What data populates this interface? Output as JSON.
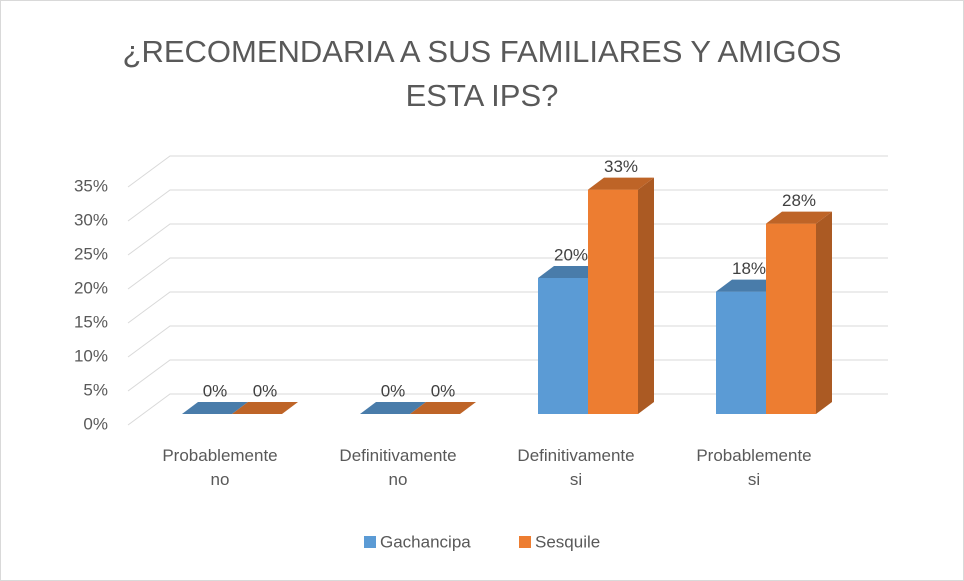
{
  "chart_data": {
    "type": "bar3d",
    "title": "¿RECOMENDARIA A SUS FAMILIARES Y AMIGOS ESTA IPS?",
    "categories": [
      "Probablemente no",
      "Definitivamente no",
      "Definitivamente si",
      "Probablemente si"
    ],
    "series": [
      {
        "name": "Gachancipa",
        "color": "#5b9bd5",
        "values": [
          0,
          0,
          20,
          18
        ],
        "value_labels": [
          "0%",
          "0%",
          "20%",
          "18%"
        ]
      },
      {
        "name": "Sesquile",
        "color": "#ed7d31",
        "values": [
          0,
          0,
          33,
          28
        ],
        "value_labels": [
          "0%",
          "0%",
          "33%",
          "28%"
        ]
      }
    ],
    "ylim": [
      0,
      35
    ],
    "yticks": [
      {
        "value": 0,
        "label": "0%"
      },
      {
        "value": 5,
        "label": "5%"
      },
      {
        "value": 10,
        "label": "10%"
      },
      {
        "value": 15,
        "label": "15%"
      },
      {
        "value": 20,
        "label": "20%"
      },
      {
        "value": 25,
        "label": "25%"
      },
      {
        "value": 30,
        "label": "30%"
      },
      {
        "value": 35,
        "label": "35%"
      }
    ],
    "grid": true,
    "legend": "bottom"
  }
}
